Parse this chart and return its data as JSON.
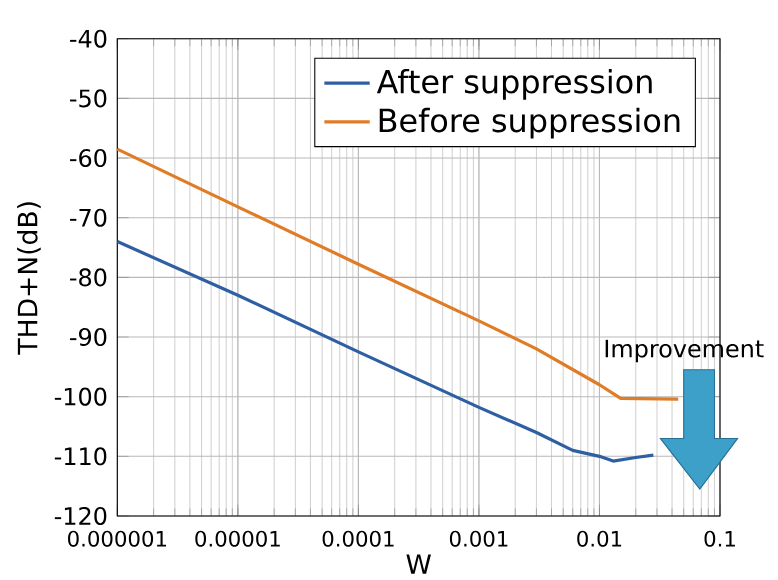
{
  "chart_data": {
    "type": "line",
    "xlabel": "W",
    "ylabel": "THD+N(dB)",
    "log": "x",
    "grid": true,
    "legend": "top right",
    "xlim": [
      1e-06,
      0.1
    ],
    "ylim": [
      -120,
      -40
    ],
    "xticks": [
      {
        "value": 1e-06,
        "label": "0.000001"
      },
      {
        "value": 1e-05,
        "label": "0.00001"
      },
      {
        "value": 0.0001,
        "label": "0.0001"
      },
      {
        "value": 0.001,
        "label": "0.001"
      },
      {
        "value": 0.01,
        "label": "0.01"
      },
      {
        "value": 0.1,
        "label": "0.1"
      }
    ],
    "yticks": [
      -120,
      -110,
      -100,
      -90,
      -80,
      -70,
      -60,
      -50,
      -40
    ],
    "annotations": [
      "Improvement"
    ],
    "series": [
      {
        "name": "After suppression",
        "color": "#2e5fa3",
        "x": [
          1e-06,
          1e-05,
          0.0001,
          0.001,
          0.003,
          0.006,
          0.01,
          0.013,
          0.02,
          0.028
        ],
        "values": [
          -74,
          -83,
          -92.5,
          -101.8,
          -106,
          -109,
          -110,
          -110.8,
          -110.2,
          -109.8
        ]
      },
      {
        "name": "Before suppression",
        "color": "#e07b26",
        "x": [
          1e-06,
          1e-05,
          0.0001,
          0.001,
          0.003,
          0.01,
          0.015,
          0.045
        ],
        "values": [
          -58.5,
          -68.2,
          -77.8,
          -87.3,
          -92,
          -98,
          -100.3,
          -100.4
        ]
      }
    ]
  }
}
